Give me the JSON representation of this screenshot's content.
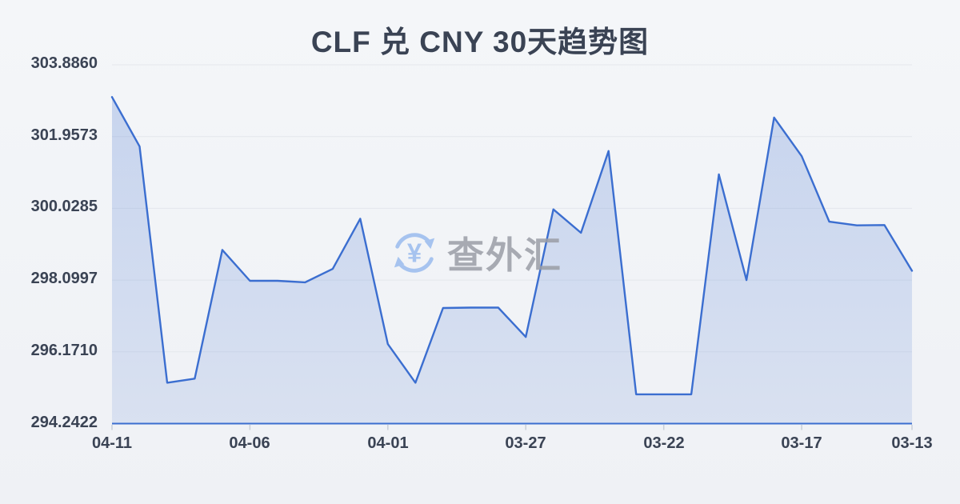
{
  "title": "CLF 兑 CNY 30天趋势图",
  "watermark": {
    "text": "查外汇",
    "icon": "currency-exchange-refresh-icon",
    "symbol": "¥"
  },
  "colors": {
    "background": "#f1f3f6",
    "title_text": "#3a4354",
    "axis_text": "#3a4354",
    "line": "#3b6ed0",
    "fill_top": "rgba(97,136,214,0.30)",
    "fill_bottom": "rgba(97,136,214,0.16)",
    "grid": "#e4e7ec",
    "tick": "#c9cfd8",
    "watermark_icon": "#a6c3ef",
    "watermark_text": "#9b9ea6"
  },
  "chart_data": {
    "type": "area",
    "title": "CLF 兑 CNY 30天趋势图",
    "x": [
      "04-11",
      "04-10",
      "04-09",
      "04-08",
      "04-07",
      "04-06",
      "04-05",
      "04-04",
      "04-03",
      "04-02",
      "04-01",
      "03-31",
      "03-30",
      "03-29",
      "03-28",
      "03-27",
      "03-26",
      "03-25",
      "03-24",
      "03-23",
      "03-22",
      "03-21",
      "03-20",
      "03-19",
      "03-18",
      "03-17",
      "03-16",
      "03-15",
      "03-14",
      "03-13"
    ],
    "values": [
      303.02,
      301.69,
      295.34,
      295.45,
      298.91,
      298.08,
      298.08,
      298.04,
      298.4,
      299.75,
      296.38,
      295.34,
      297.35,
      297.36,
      297.36,
      296.57,
      300.0,
      299.37,
      301.57,
      295.03,
      295.03,
      295.03,
      300.94,
      298.1,
      302.47,
      301.43,
      299.67,
      299.57,
      299.58,
      298.35
    ],
    "ylim": [
      294.2422,
      303.886
    ],
    "yticks": [
      294.2422,
      296.171,
      298.0997,
      300.0285,
      301.9573,
      303.886
    ],
    "ytick_labels": [
      "294.2422",
      "296.1710",
      "298.0997",
      "300.0285",
      "301.9573",
      "303.8860"
    ],
    "xtick_labels": [
      "04-11",
      "04-06",
      "04-01",
      "03-27",
      "03-22",
      "03-17",
      "03-13"
    ],
    "xtick_indices": [
      0,
      5,
      10,
      15,
      20,
      25,
      29
    ],
    "grid": "horizontal-only",
    "legend": false,
    "x_axis_note": "dates run newest (04-11) on the left to oldest (03-13) on the right"
  }
}
